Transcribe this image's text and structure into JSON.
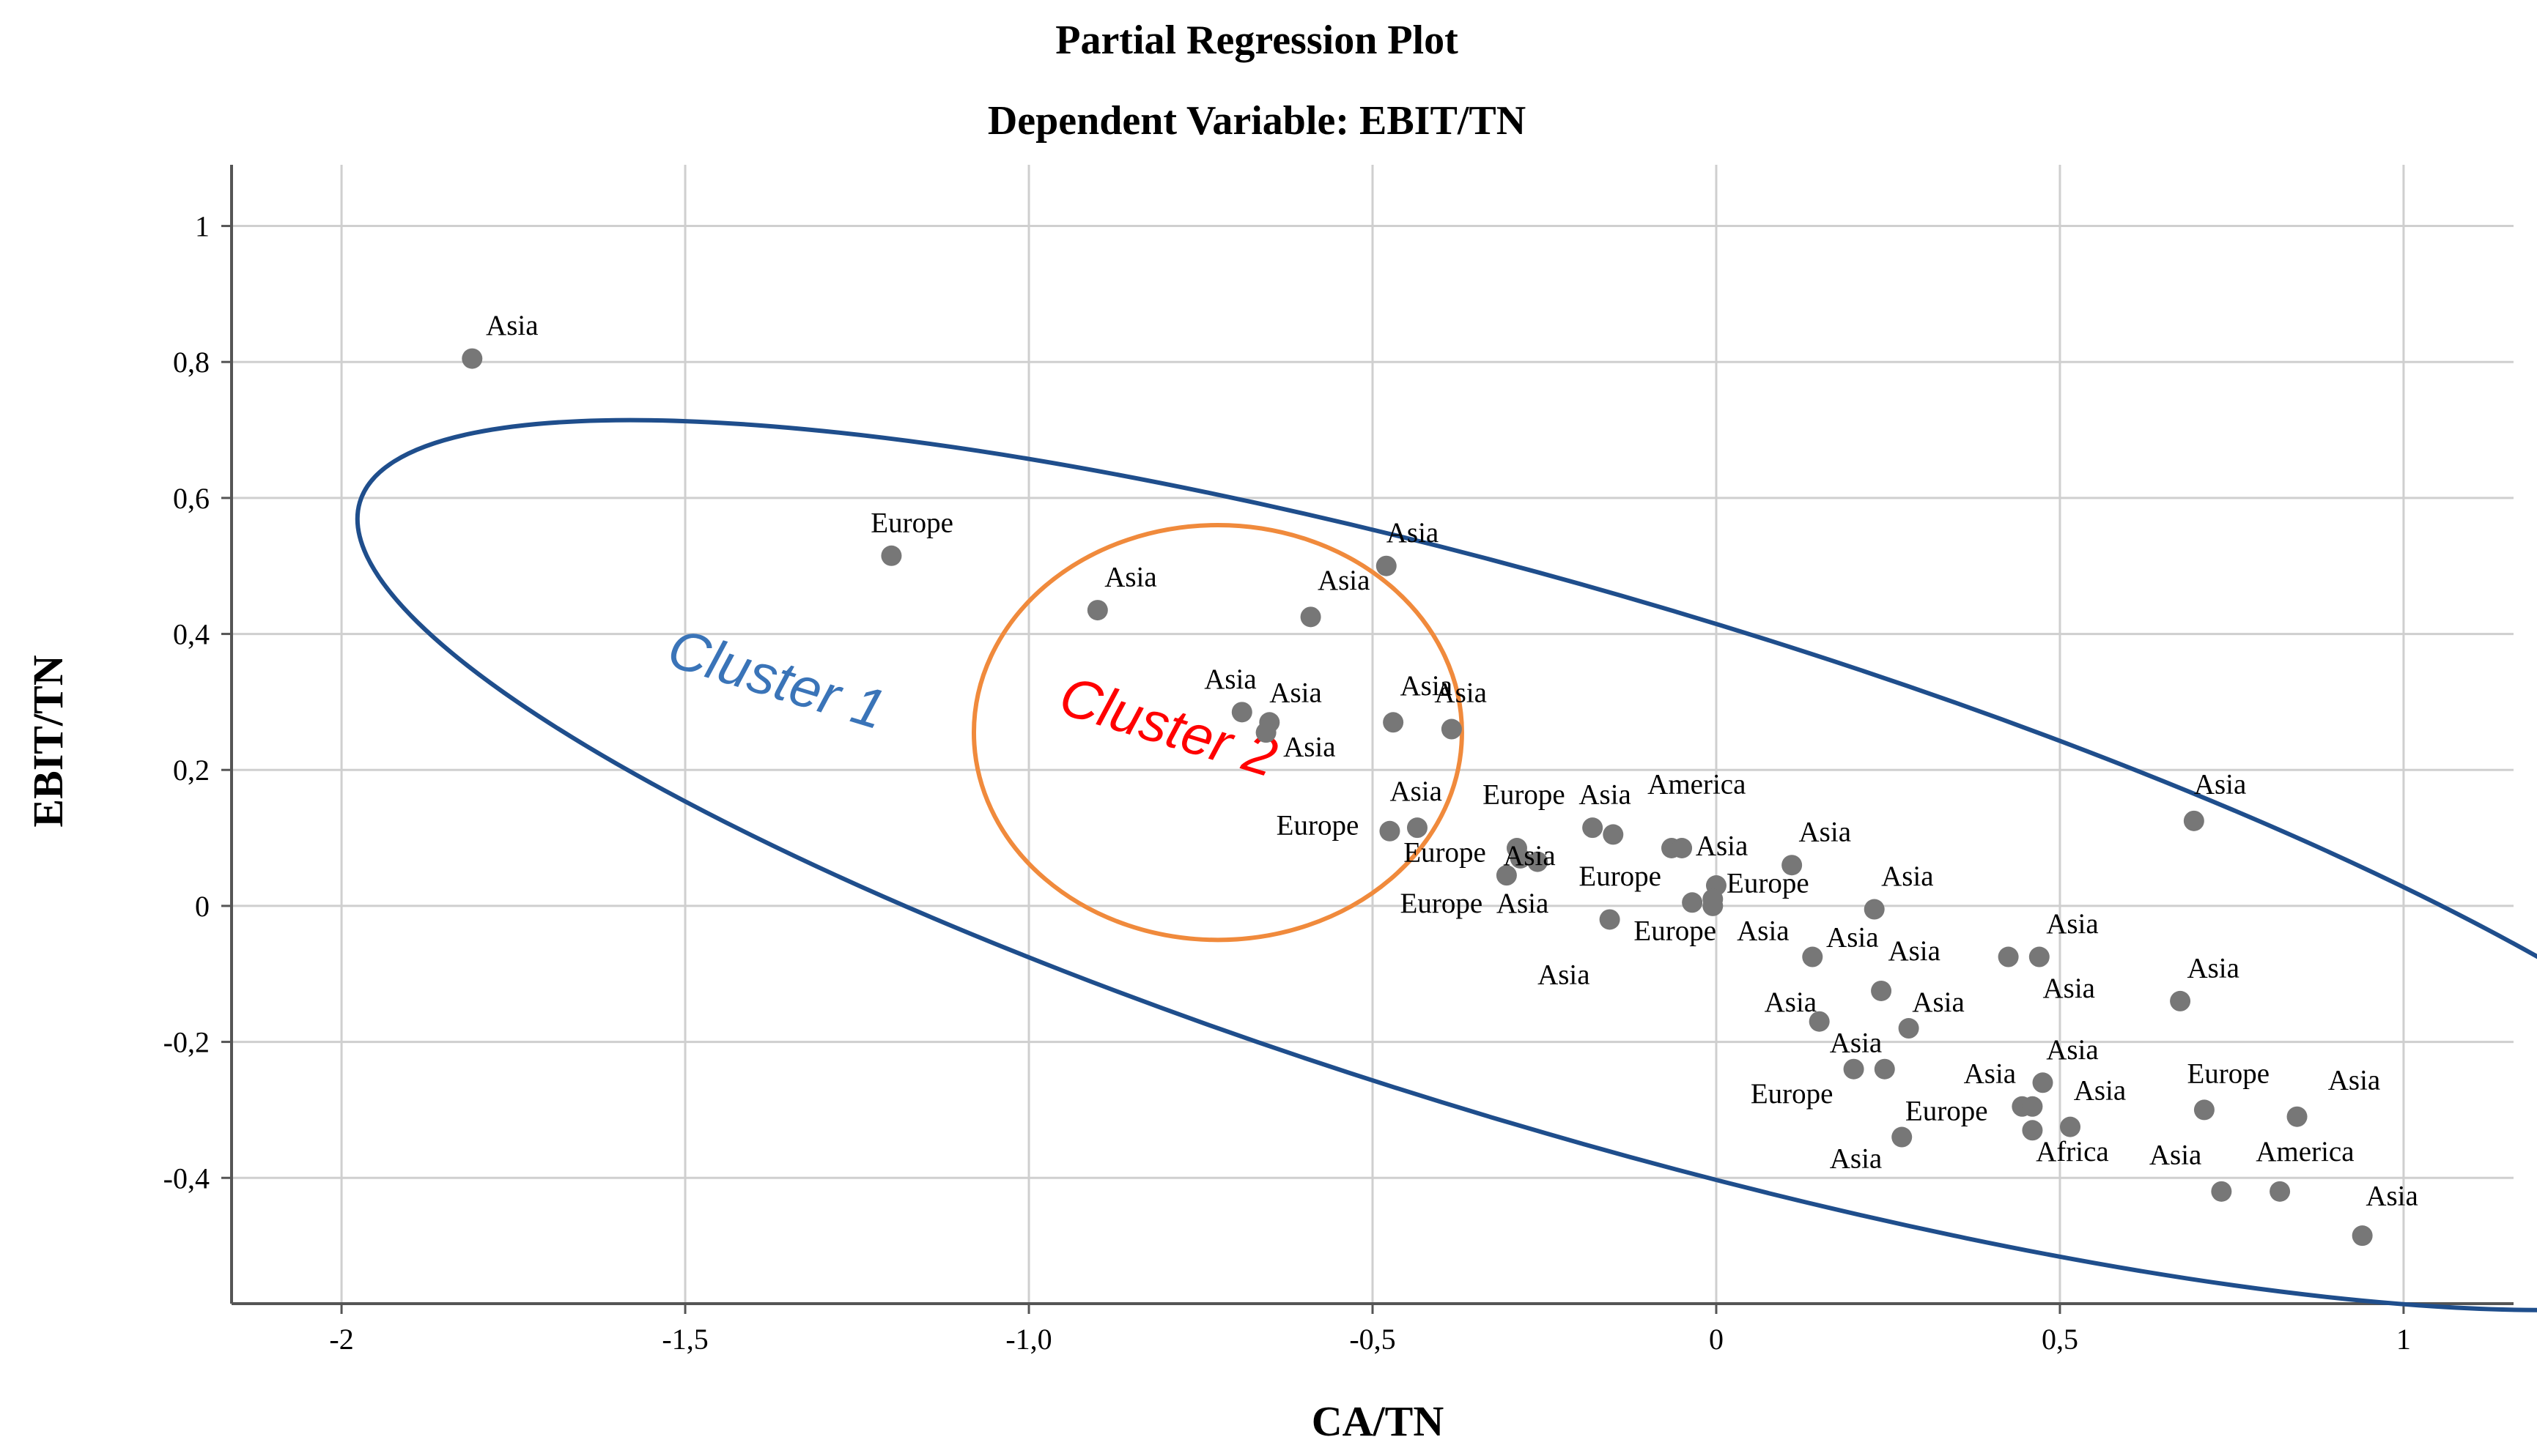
{
  "chart_data": {
    "type": "scatter",
    "title": "Partial Regression Plot",
    "subtitle": "Dependent Variable: EBIT/TN",
    "xlabel": "CA/TN",
    "ylabel": "EBIT/TN",
    "xlim": [
      -2.16,
      1.16
    ],
    "ylim": [
      -0.585,
      1.09
    ],
    "grid": true,
    "x_ticks": [
      -2,
      -1.5,
      -1,
      -0.5,
      0,
      0.5,
      1
    ],
    "x_tick_labels": [
      "-2",
      "-1,5",
      "-1,0",
      "-0,5",
      "0",
      "0,5",
      "1"
    ],
    "y_ticks": [
      1,
      0.8,
      0.6,
      0.4,
      0.2,
      0,
      -0.2,
      -0.4
    ],
    "y_tick_labels": [
      "1",
      "0,8",
      "0,6",
      "0,4",
      "0,2",
      "0",
      "-0,2",
      "-0,4"
    ],
    "marker_color": "#777777",
    "points": [
      {
        "x": -1.81,
        "y": 0.805
      },
      {
        "x": -1.2,
        "y": 0.515
      },
      {
        "x": -0.9,
        "y": 0.435
      },
      {
        "x": -0.59,
        "y": 0.425
      },
      {
        "x": -0.48,
        "y": 0.5
      },
      {
        "x": -0.69,
        "y": 0.285
      },
      {
        "x": -0.65,
        "y": 0.27
      },
      {
        "x": -0.655,
        "y": 0.255
      },
      {
        "x": -0.47,
        "y": 0.27
      },
      {
        "x": -0.385,
        "y": 0.26
      },
      {
        "x": -0.475,
        "y": 0.11
      },
      {
        "x": -0.435,
        "y": 0.115
      },
      {
        "x": -0.29,
        "y": 0.085
      },
      {
        "x": -0.285,
        "y": 0.07
      },
      {
        "x": -0.26,
        "y": 0.065
      },
      {
        "x": -0.305,
        "y": 0.045
      },
      {
        "x": -0.18,
        "y": 0.115
      },
      {
        "x": -0.15,
        "y": 0.105
      },
      {
        "x": -0.065,
        "y": 0.085
      },
      {
        "x": -0.05,
        "y": 0.085
      },
      {
        "x": 0.0,
        "y": 0.03
      },
      {
        "x": -0.005,
        "y": 0.01
      },
      {
        "x": -0.035,
        "y": 0.005
      },
      {
        "x": -0.005,
        "y": 0.0
      },
      {
        "x": -0.155,
        "y": -0.02
      },
      {
        "x": 0.11,
        "y": 0.06
      },
      {
        "x": 0.23,
        "y": -0.005
      },
      {
        "x": 0.14,
        "y": -0.075
      },
      {
        "x": 0.24,
        "y": -0.125
      },
      {
        "x": 0.15,
        "y": -0.17
      },
      {
        "x": 0.28,
        "y": -0.18
      },
      {
        "x": 0.2,
        "y": -0.24
      },
      {
        "x": 0.245,
        "y": -0.24
      },
      {
        "x": 0.27,
        "y": -0.34
      },
      {
        "x": 0.425,
        "y": -0.075
      },
      {
        "x": 0.47,
        "y": -0.075
      },
      {
        "x": 0.475,
        "y": -0.26
      },
      {
        "x": 0.445,
        "y": -0.295
      },
      {
        "x": 0.46,
        "y": -0.295
      },
      {
        "x": 0.46,
        "y": -0.33
      },
      {
        "x": 0.515,
        "y": -0.325
      },
      {
        "x": 0.675,
        "y": -0.14
      },
      {
        "x": 0.695,
        "y": 0.125
      },
      {
        "x": 0.71,
        "y": -0.3
      },
      {
        "x": 0.845,
        "y": -0.31
      },
      {
        "x": 0.735,
        "y": -0.42
      },
      {
        "x": 0.82,
        "y": -0.42
      },
      {
        "x": 0.94,
        "y": -0.485
      }
    ],
    "annotations": [
      {
        "text": "Asia",
        "x": -1.79,
        "y": 0.84
      },
      {
        "text": "Europe",
        "x": -1.23,
        "y": 0.55
      },
      {
        "text": "Asia",
        "x": -0.89,
        "y": 0.47
      },
      {
        "text": "Asia",
        "x": -0.58,
        "y": 0.465
      },
      {
        "text": "Asia",
        "x": -0.48,
        "y": 0.535
      },
      {
        "text": "Asia",
        "x": -0.745,
        "y": 0.32
      },
      {
        "text": "Asia",
        "x": -0.65,
        "y": 0.3
      },
      {
        "text": "Asia",
        "x": -0.63,
        "y": 0.22
      },
      {
        "text": "Asia",
        "x": -0.46,
        "y": 0.31
      },
      {
        "text": "Asia",
        "x": -0.41,
        "y": 0.3
      },
      {
        "text": "Asia",
        "x": -0.475,
        "y": 0.155
      },
      {
        "text": "Europe",
        "x": -0.64,
        "y": 0.105
      },
      {
        "text": "Europe",
        "x": -0.34,
        "y": 0.15
      },
      {
        "text": "Asia",
        "x": -0.2,
        "y": 0.15
      },
      {
        "text": "America",
        "x": -0.1,
        "y": 0.165
      },
      {
        "text": "Europe",
        "x": -0.455,
        "y": 0.065
      },
      {
        "text": "Asia",
        "x": -0.31,
        "y": 0.06
      },
      {
        "text": "Asia",
        "x": -0.03,
        "y": 0.075
      },
      {
        "text": "Asia",
        "x": 0.12,
        "y": 0.095
      },
      {
        "text": "Europe",
        "x": -0.2,
        "y": 0.03
      },
      {
        "text": "Europe",
        "x": 0.015,
        "y": 0.02
      },
      {
        "text": "Europe",
        "x": -0.46,
        "y": -0.01
      },
      {
        "text": "Asia",
        "x": -0.32,
        "y": -0.01
      },
      {
        "text": "Asia",
        "x": 0.24,
        "y": 0.03
      },
      {
        "text": "Europe",
        "x": -0.12,
        "y": -0.05
      },
      {
        "text": "Asia",
        "x": 0.03,
        "y": -0.05
      },
      {
        "text": "Asia",
        "x": 0.16,
        "y": -0.06
      },
      {
        "text": "Asia",
        "x": 0.25,
        "y": -0.08
      },
      {
        "text": "Asia",
        "x": 0.48,
        "y": -0.04
      },
      {
        "text": "Asia",
        "x": -0.26,
        "y": -0.115
      },
      {
        "text": "Asia",
        "x": 0.07,
        "y": -0.155
      },
      {
        "text": "Asia",
        "x": 0.285,
        "y": -0.155
      },
      {
        "text": "Asia",
        "x": 0.475,
        "y": -0.135
      },
      {
        "text": "Asia",
        "x": 0.685,
        "y": -0.105
      },
      {
        "text": "Asia",
        "x": 0.165,
        "y": -0.215
      },
      {
        "text": "Asia",
        "x": 0.48,
        "y": -0.225
      },
      {
        "text": "Asia",
        "x": 0.36,
        "y": -0.26
      },
      {
        "text": "Europe",
        "x": 0.05,
        "y": -0.29
      },
      {
        "text": "Europe",
        "x": 0.275,
        "y": -0.315
      },
      {
        "text": "Asia",
        "x": 0.52,
        "y": -0.285
      },
      {
        "text": "Europe",
        "x": 0.685,
        "y": -0.26
      },
      {
        "text": "Asia",
        "x": 0.89,
        "y": -0.27
      },
      {
        "text": "Asia",
        "x": 0.165,
        "y": -0.385
      },
      {
        "text": "Africa",
        "x": 0.465,
        "y": -0.375
      },
      {
        "text": "Asia",
        "x": 0.63,
        "y": -0.38
      },
      {
        "text": "America",
        "x": 0.785,
        "y": -0.375
      },
      {
        "text": "Asia",
        "x": 0.945,
        "y": -0.44
      },
      {
        "text": "Asia",
        "x": 0.695,
        "y": 0.165
      }
    ],
    "clusters": [
      {
        "name": "Cluster 1",
        "color": "#1f4e8c",
        "label_color": "#3a74b8",
        "center": [
          -0.19,
          0.06
        ],
        "semi_axes": [
          1.86,
          0.395
        ],
        "angle_deg": -16.5,
        "label_pos": [
          -1.53,
          0.355
        ],
        "label_rotation": 17
      },
      {
        "name": "Cluster 2",
        "color": "#f08a3c",
        "label_color": "#ff0000",
        "center": [
          -0.725,
          0.255
        ],
        "semi_axes": [
          0.355,
          0.305
        ],
        "angle_deg": 0,
        "label_pos": [
          -0.96,
          0.285
        ],
        "label_rotation": 17
      }
    ]
  }
}
